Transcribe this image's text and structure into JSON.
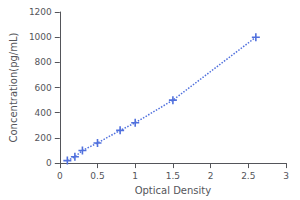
{
  "chart_data": {
    "type": "line",
    "x": [
      0.1,
      0.2,
      0.3,
      0.5,
      0.8,
      1.0,
      1.5,
      2.6
    ],
    "values": [
      20,
      50,
      100,
      160,
      260,
      320,
      500,
      1000
    ],
    "xlabel": "Optical Density",
    "ylabel": "Concentration(pg/mL)",
    "xlim": [
      0,
      3
    ],
    "ylim": [
      0,
      1200
    ],
    "xticks": [
      0,
      0.5,
      1,
      1.5,
      2,
      2.5,
      3
    ],
    "yticks": [
      0,
      200,
      400,
      600,
      800,
      1000,
      1200
    ],
    "grid": false,
    "marker": "plus",
    "line_style": "dotted"
  }
}
